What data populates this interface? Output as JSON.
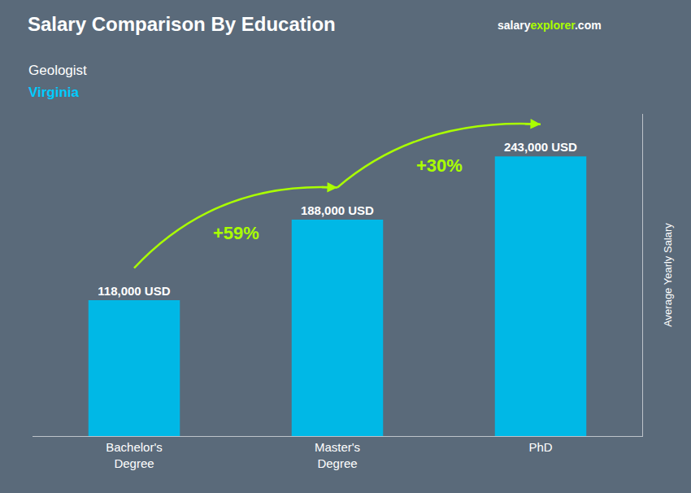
{
  "chart_data": {
    "type": "bar",
    "title": "Salary Comparison By Education",
    "subtitles": [
      {
        "text": "Geologist",
        "color": "#ffffff"
      },
      {
        "text": "Virginia",
        "color": "#00ccff"
      }
    ],
    "source_text": [
      {
        "text": "salary",
        "color": "#ffffff"
      },
      {
        "text": "explorer",
        "color": "#aaff00"
      },
      {
        "text": ".com",
        "color": "#ffffff"
      }
    ],
    "ylabel": "Average Yearly Salary",
    "categories": [
      "Bachelor's\nDegree",
      "Master's\nDegree",
      "PhD"
    ],
    "values": [
      118000,
      188000,
      243000
    ],
    "value_labels": [
      "118,000 USD",
      "188,000 USD",
      "243,000 USD"
    ],
    "data_labels": true,
    "color": "#00b8e6",
    "background_color": "#5a6a7a",
    "arrows": [
      {
        "from": 0,
        "to": 1,
        "text": "+59%",
        "color": "#aaff00"
      },
      {
        "from": 1,
        "to": 2,
        "text": "+30%",
        "color": "#aaff00"
      }
    ],
    "ylim": [
      0,
      280000
    ],
    "yticks": [],
    "tick_labels": "x",
    "grid": false
  }
}
